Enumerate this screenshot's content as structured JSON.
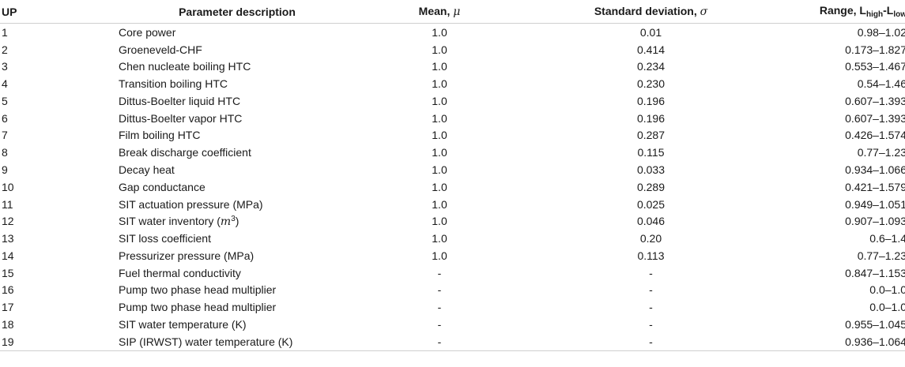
{
  "table": {
    "headers": {
      "up": "UP",
      "description": "Parameter description",
      "mean_label": "Mean, ",
      "mean_symbol": "μ",
      "sd_label": "Standard deviation, ",
      "sd_symbol": "σ",
      "range_label": "Range, ",
      "range_L1": "L",
      "range_sub1": "high",
      "range_dash": "-",
      "range_L2": "L",
      "range_sub2": "low"
    },
    "rows": [
      {
        "up": "1",
        "desc": "Core power",
        "mean": "1.0",
        "sd": "0.01",
        "range": "0.98–1.02"
      },
      {
        "up": "2",
        "desc": "Groeneveld-CHF",
        "mean": "1.0",
        "sd": "0.414",
        "range": "0.173–1.827"
      },
      {
        "up": "3",
        "desc": "Chen nucleate boiling HTC",
        "mean": "1.0",
        "sd": "0.234",
        "range": "0.553–1.467"
      },
      {
        "up": "4",
        "desc": "Transition boiling HTC",
        "mean": "1.0",
        "sd": "0.230",
        "range": "0.54–1.46"
      },
      {
        "up": "5",
        "desc": "Dittus-Boelter liquid HTC",
        "mean": "1.0",
        "sd": "0.196",
        "range": "0.607–1.393"
      },
      {
        "up": "6",
        "desc": "Dittus-Boelter vapor HTC",
        "mean": "1.0",
        "sd": "0.196",
        "range": "0.607–1.393"
      },
      {
        "up": "7",
        "desc": "Film boiling HTC",
        "mean": "1.0",
        "sd": "0.287",
        "range": "0.426–1.574"
      },
      {
        "up": "8",
        "desc": "Break discharge coefficient",
        "mean": "1.0",
        "sd": "0.115",
        "range": "0.77–1.23"
      },
      {
        "up": "9",
        "desc": "Decay heat",
        "mean": "1.0",
        "sd": "0.033",
        "range": "0.934–1.066"
      },
      {
        "up": "10",
        "desc": "Gap conductance",
        "mean": "1.0",
        "sd": "0.289",
        "range": "0.421–1.579"
      },
      {
        "up": "11",
        "desc": "SIT actuation pressure (MPa)",
        "mean": "1.0",
        "sd": "0.025",
        "range": "0.949–1.051"
      },
      {
        "up": "12",
        "desc": "SIT water inventory (",
        "desc_unit": "m",
        "desc_sup": "3",
        "desc_end": ")",
        "mean": "1.0",
        "sd": "0.046",
        "range": "0.907–1.093"
      },
      {
        "up": "13",
        "desc": "SIT loss coefficient",
        "mean": "1.0",
        "sd": "0.20",
        "range": "0.6–1.4"
      },
      {
        "up": "14",
        "desc": "Pressurizer pressure (MPa)",
        "mean": "1.0",
        "sd": "0.113",
        "range": "0.77–1.23"
      },
      {
        "up": "15",
        "desc": "Fuel thermal conductivity",
        "mean": "-",
        "sd": "-",
        "range": "0.847–1.153"
      },
      {
        "up": "16",
        "desc": "Pump two phase head multiplier",
        "mean": "-",
        "sd": "-",
        "range": "0.0–1.0"
      },
      {
        "up": "17",
        "desc": "Pump two phase head multiplier",
        "mean": "-",
        "sd": "-",
        "range": "0.0–1.0"
      },
      {
        "up": "18",
        "desc": "SIT water temperature (K)",
        "mean": "-",
        "sd": "-",
        "range": "0.955–1.045"
      },
      {
        "up": "19",
        "desc": "SIP (IRWST) water temperature (K)",
        "mean": "-",
        "sd": "-",
        "range": "0.936–1.064"
      }
    ]
  }
}
